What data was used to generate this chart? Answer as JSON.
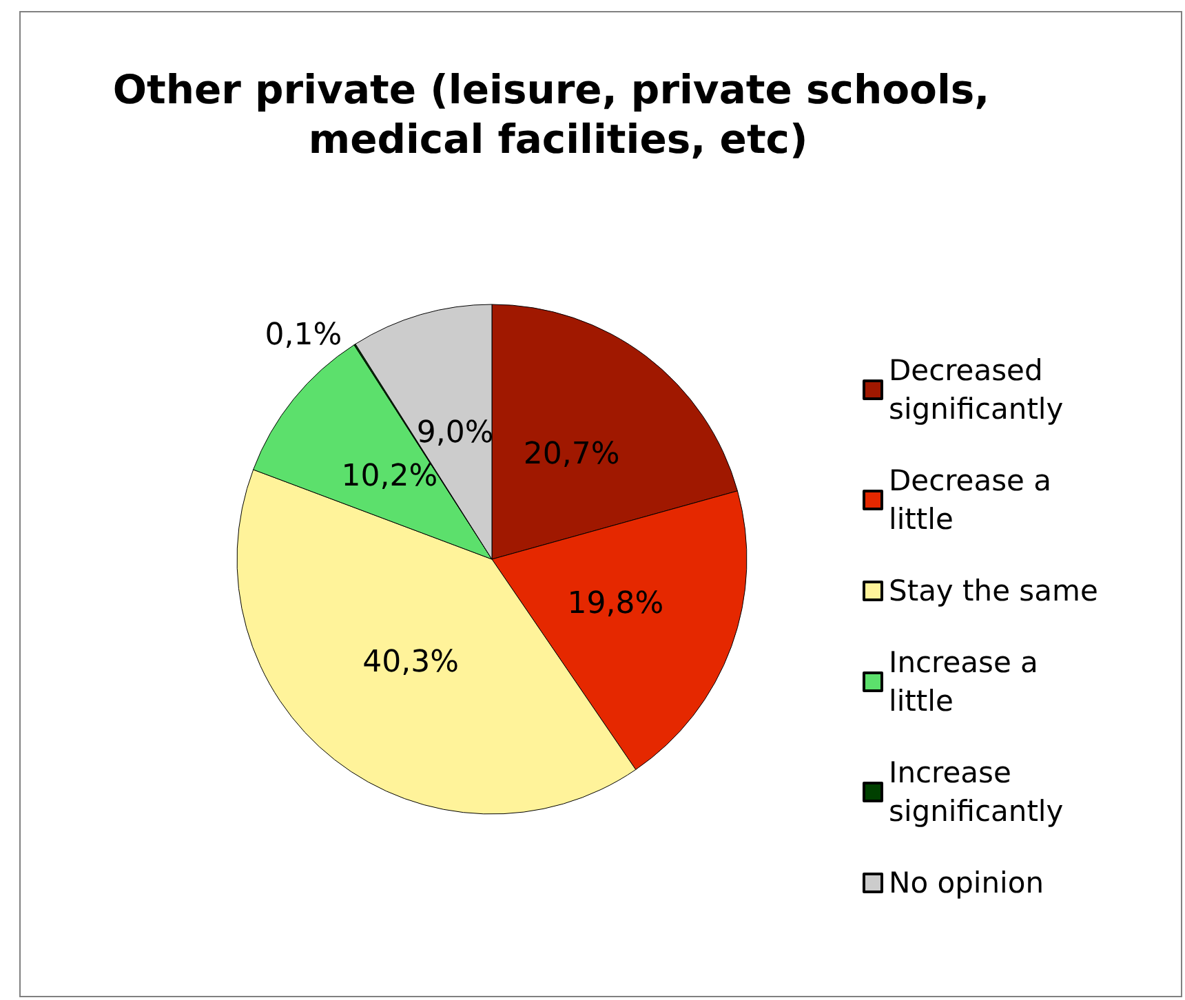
{
  "chart_data": {
    "type": "pie",
    "title": "Other private (leisure, private schools, medical facilities, etc)",
    "categories": [
      "Decreased significantly",
      "Decrease a little",
      "Stay the same",
      "Increase a little",
      "Increase significantly",
      "No opinion"
    ],
    "values": [
      20.7,
      19.8,
      40.3,
      10.2,
      0.1,
      9.0
    ],
    "colors": [
      "#a01800",
      "#e52800",
      "#fff39a",
      "#5ce06c",
      "#004000",
      "#cccccc"
    ],
    "value_labels": [
      "20,7%",
      "19,8%",
      "40,3%",
      "10,2%",
      "0,1%",
      "9,0%"
    ],
    "legend": "right"
  }
}
